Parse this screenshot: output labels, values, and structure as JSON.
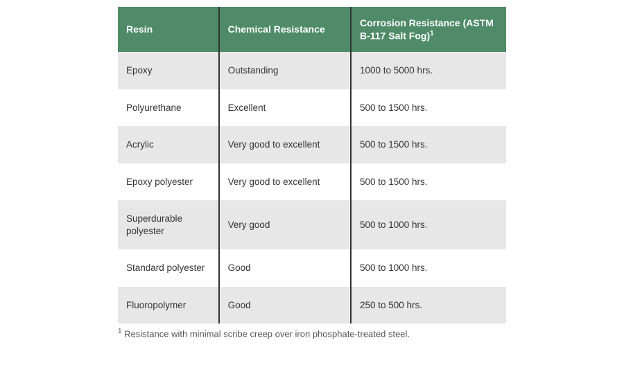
{
  "table": {
    "header_bg": "#4f8b68",
    "header_text_color": "#ffffff",
    "row_alt_bg": "#e7e7e7",
    "row_bg": "#ffffff",
    "border_color": "#333333",
    "text_color": "#333333",
    "columns": [
      {
        "label": "Resin",
        "width": "26%"
      },
      {
        "label": "Chemical Resistance",
        "width": "34%"
      },
      {
        "label_html": "Corrosion Resistance (ASTM B-117 Salt Fog)",
        "sup": "1",
        "width": "40%"
      }
    ],
    "rows": [
      {
        "resin": "Epoxy",
        "chem": "Outstanding",
        "corr": "1000 to 5000 hrs."
      },
      {
        "resin": "Polyurethane",
        "chem": "Excellent",
        "corr": "500 to 1500 hrs."
      },
      {
        "resin": "Acrylic",
        "chem": "Very good to excellent",
        "corr": "500 to 1500 hrs."
      },
      {
        "resin": "Epoxy polyester",
        "chem": "Very good to excellent",
        "corr": "500 to 1500 hrs."
      },
      {
        "resin": "Superdurable polyester",
        "chem": "Very good",
        "corr": "500 to 1000 hrs."
      },
      {
        "resin": "Standard polyester",
        "chem": "Good",
        "corr": "500 to 1000 hrs."
      },
      {
        "resin": "Fluoropolymer",
        "chem": "Good",
        "corr": "250 to 500 hrs."
      }
    ]
  },
  "footnote": {
    "sup": "1",
    "text": " Resistance with minimal scribe creep over iron phosphate-treated steel."
  }
}
